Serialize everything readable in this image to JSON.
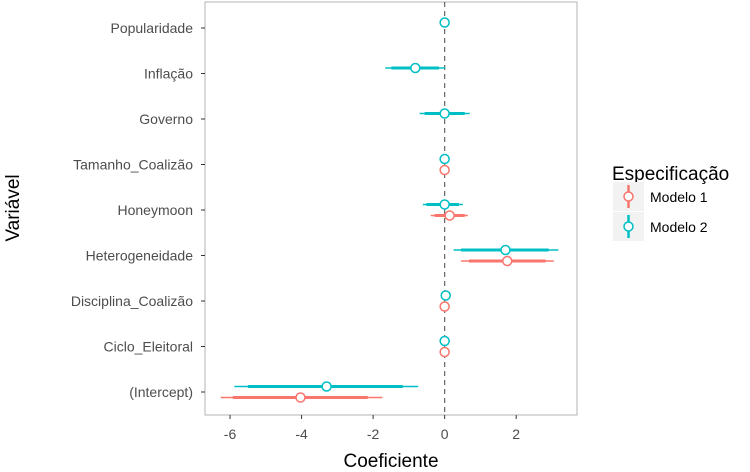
{
  "chart_data": {
    "type": "scatter",
    "subtype": "coefficient-plot",
    "title": "",
    "xlabel": "Coeficiente",
    "ylabel": "Variável",
    "xlim": [
      -6.7,
      3.7
    ],
    "xticks": [
      -6,
      -4,
      -2,
      0,
      2
    ],
    "reference_line": 0,
    "grid": false,
    "legend": {
      "title": "Especificação",
      "placement": "right"
    },
    "categories": [
      "Popularidade",
      "Inflação",
      "Governo",
      "Tamanho_Coalizão",
      "Honeymoon",
      "Heterogeneidade",
      "Disciplina_Coalizão",
      "Ciclo_Eleitoral",
      "(Intercept)"
    ],
    "series": [
      {
        "name": "Modelo 1",
        "color": "#F8766D",
        "points": [
          null,
          null,
          null,
          {
            "est": 0.0,
            "lo": -0.02,
            "hi": 0.02,
            "lo_in": -0.01,
            "hi_in": 0.01
          },
          {
            "est": 0.14,
            "lo": -0.39,
            "hi": 0.65,
            "lo_in": -0.28,
            "hi_in": 0.56
          },
          {
            "est": 1.75,
            "lo": 0.46,
            "hi": 3.05,
            "lo_in": 0.68,
            "hi_in": 2.82
          },
          {
            "est": 0.0,
            "lo": -0.02,
            "hi": 0.02,
            "lo_in": -0.01,
            "hi_in": 0.01
          },
          {
            "est": 0.0,
            "lo": -0.02,
            "hi": 0.02,
            "lo_in": -0.01,
            "hi_in": 0.01
          },
          {
            "est": -4.03,
            "lo": -6.26,
            "hi": -1.74,
            "lo_in": -5.92,
            "hi_in": -2.15
          }
        ]
      },
      {
        "name": "Modelo 2",
        "color": "#00BFC4",
        "points": [
          {
            "est": 0.0,
            "lo": -0.02,
            "hi": 0.02,
            "lo_in": -0.01,
            "hi_in": 0.01
          },
          {
            "est": -0.82,
            "lo": -1.66,
            "hi": 0.02,
            "lo_in": -1.49,
            "hi_in": -0.16
          },
          {
            "est": 0.0,
            "lo": -0.7,
            "hi": 0.7,
            "lo_in": -0.56,
            "hi_in": 0.56
          },
          {
            "est": 0.0,
            "lo": -0.02,
            "hi": 0.02,
            "lo_in": -0.01,
            "hi_in": 0.01
          },
          {
            "est": 0.0,
            "lo": -0.61,
            "hi": 0.51,
            "lo_in": -0.51,
            "hi_in": 0.4
          },
          {
            "est": 1.7,
            "lo": 0.25,
            "hi": 3.18,
            "lo_in": 0.46,
            "hi_in": 2.91
          },
          {
            "est": 0.03,
            "lo": 0.01,
            "hi": 0.05,
            "lo_in": 0.02,
            "hi_in": 0.04
          },
          {
            "est": 0.0,
            "lo": -0.02,
            "hi": 0.02,
            "lo_in": -0.01,
            "hi_in": 0.01
          },
          {
            "est": -3.3,
            "lo": -5.88,
            "hi": -0.74,
            "lo_in": -5.5,
            "hi_in": -1.17
          }
        ]
      }
    ]
  }
}
